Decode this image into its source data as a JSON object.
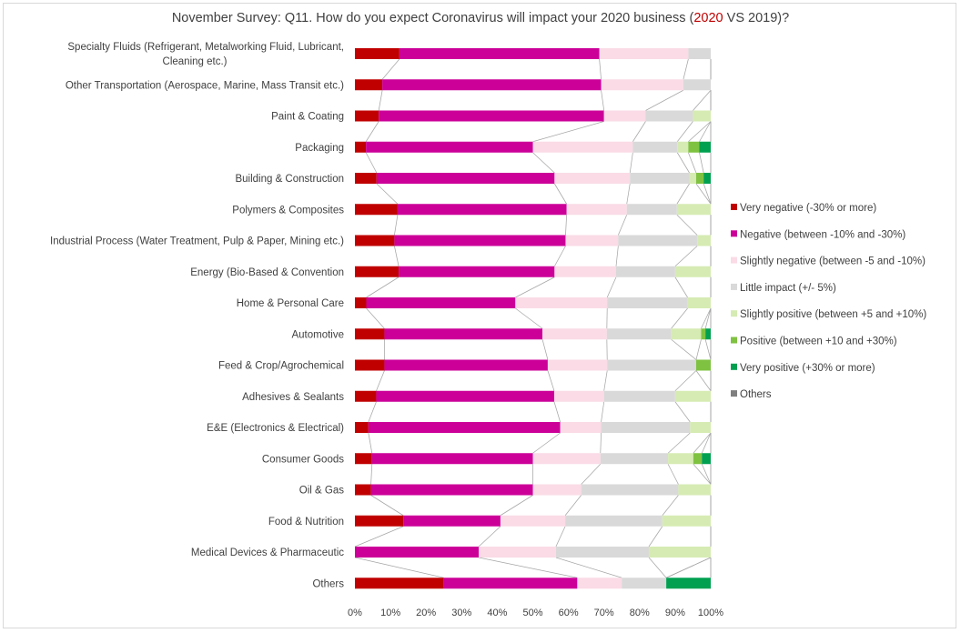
{
  "chart_data": {
    "type": "bar",
    "orientation": "horizontal",
    "stacked": "percent",
    "title_parts": {
      "before": "November Survey: Q11. How do you expect Coronavirus will impact your 2020 business (",
      "highlight": "2020",
      "after": " VS 2019)?"
    },
    "categories": [
      "Specialty Fluids (Refrigerant, Metalworking Fluid, Lubricant, Cleaning etc.)",
      "Other Transportation (Aerospace, Marine, Mass Transit etc.)",
      "Paint & Coating",
      "Packaging",
      "Building & Construction",
      "Polymers & Composites",
      "Industrial Process (Water Treatment, Pulp & Paper, Mining etc.)",
      "Energy (Bio-Based & Convention",
      "Home & Personal Care",
      "Automotive",
      "Feed & Crop/Agrochemical",
      "Adhesives & Sealants",
      "E&E (Electronics & Electrical)",
      "Consumer Goods",
      "Oil & Gas",
      "Food & Nutrition",
      "Medical Devices & Pharmaceutic",
      "Others"
    ],
    "series": [
      {
        "name": "Very negative (-30% or more)",
        "color": "#c00000",
        "values": [
          12.5,
          7.7,
          6.7,
          3.1,
          6.1,
          12.0,
          11.1,
          12.3,
          3.2,
          8.3,
          8.3,
          6.0,
          3.8,
          4.8,
          4.5,
          13.6,
          0.0,
          25.0
        ]
      },
      {
        "name": "Negative (between -10% and -30%)",
        "color": "#cc0099",
        "values": [
          56.2,
          61.5,
          63.3,
          46.9,
          50.0,
          47.5,
          48.1,
          43.8,
          41.9,
          44.4,
          45.9,
          50.0,
          53.9,
          45.2,
          45.5,
          27.3,
          34.8,
          37.5
        ]
      },
      {
        "name": "Slightly negative (between -5 and -10%)",
        "color": "#fadbe6",
        "values": [
          25.0,
          23.1,
          11.7,
          28.1,
          21.2,
          16.9,
          14.8,
          17.3,
          25.8,
          18.1,
          16.7,
          14.0,
          11.5,
          19.0,
          13.6,
          18.2,
          21.7,
          12.5
        ]
      },
      {
        "name": "Little impact (+/- 5%)",
        "color": "#d9d9d9",
        "values": [
          6.3,
          7.7,
          13.3,
          12.5,
          16.7,
          14.1,
          22.2,
          16.6,
          22.6,
          18.1,
          25.0,
          20.0,
          25.0,
          19.0,
          27.3,
          27.3,
          26.1,
          12.5
        ]
      },
      {
        "name": "Slightly positive (between +5 and +10%)",
        "color": "#d6ebb3",
        "values": [
          0,
          0,
          5.0,
          3.1,
          1.9,
          9.5,
          3.8,
          10.0,
          6.5,
          8.4,
          0,
          10.0,
          5.8,
          7.1,
          9.1,
          13.6,
          17.4,
          0
        ]
      },
      {
        "name": "Positive (between +10 and +30%)",
        "color": "#7fc241",
        "values": [
          0,
          0,
          0,
          3.1,
          2.1,
          0,
          0,
          0,
          0,
          1.2,
          4.1,
          0,
          0,
          2.4,
          0,
          0,
          0,
          0
        ]
      },
      {
        "name": "Very positive (+30% or more)",
        "color": "#00a050",
        "values": [
          0,
          0,
          0,
          3.2,
          2.0,
          0,
          0,
          0,
          0,
          1.5,
          0,
          0,
          0,
          2.5,
          0,
          0,
          0,
          12.5
        ]
      },
      {
        "name": "Others",
        "color": "#7f7f7f",
        "values": [
          0,
          0,
          0,
          0,
          0,
          0,
          0,
          0,
          0,
          0,
          0,
          0,
          0,
          0,
          0,
          0,
          0,
          0
        ]
      }
    ],
    "x_ticks": [
      "0%",
      "10%",
      "20%",
      "30%",
      "40%",
      "50%",
      "60%",
      "70%",
      "80%",
      "90%",
      "100%"
    ],
    "xlim": [
      0,
      100
    ],
    "series_lines": true,
    "grid": false,
    "legend_position": "right"
  }
}
